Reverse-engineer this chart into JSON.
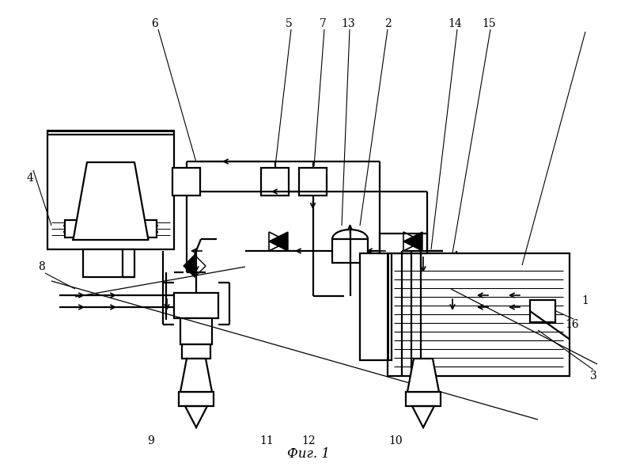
{
  "background": "#ffffff",
  "lw": 1.6,
  "lw_thin": 0.9,
  "fig_width": 7.8,
  "fig_height": 5.95,
  "label_fs": 10,
  "title": "Фиг. 1"
}
